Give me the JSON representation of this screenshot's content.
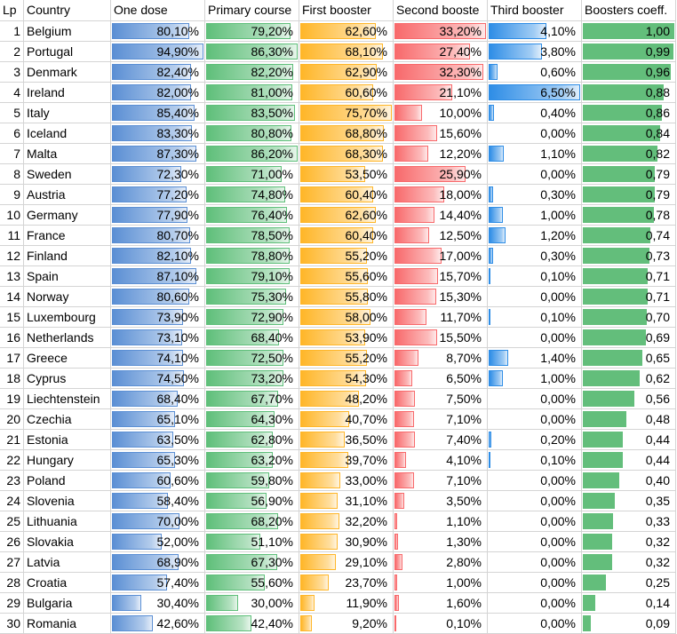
{
  "chart_data": {
    "type": "table",
    "columns": [
      "Lp",
      "Country",
      "One dose",
      "Primary course",
      "First booster",
      "Second booste",
      "Third booster",
      "Boosters coeff."
    ],
    "rows": [
      [
        "1",
        "Belgium",
        "80,10%",
        "79,20%",
        "62,60%",
        "33,20%",
        "4,10%",
        "1,00"
      ],
      [
        "2",
        "Portugal",
        "94,90%",
        "86,30%",
        "68,10%",
        "27,40%",
        "3,80%",
        "0,99"
      ],
      [
        "3",
        "Denmark",
        "82,40%",
        "82,20%",
        "62,90%",
        "32,30%",
        "0,60%",
        "0,96"
      ],
      [
        "4",
        "Ireland",
        "82,00%",
        "81,00%",
        "60,60%",
        "21,10%",
        "6,50%",
        "0,88"
      ],
      [
        "5",
        "Italy",
        "85,40%",
        "83,50%",
        "75,70%",
        "10,00%",
        "0,40%",
        "0,86"
      ],
      [
        "6",
        "Iceland",
        "83,30%",
        "80,80%",
        "68,80%",
        "15,60%",
        "0,00%",
        "0,84"
      ],
      [
        "7",
        "Malta",
        "87,30%",
        "86,20%",
        "68,30%",
        "12,20%",
        "1,10%",
        "0,82"
      ],
      [
        "8",
        "Sweden",
        "72,30%",
        "71,00%",
        "53,50%",
        "25,90%",
        "0,00%",
        "0,79"
      ],
      [
        "9",
        "Austria",
        "77,20%",
        "74,80%",
        "60,40%",
        "18,00%",
        "0,30%",
        "0,79"
      ],
      [
        "10",
        "Germany",
        "77,90%",
        "76,40%",
        "62,60%",
        "14,40%",
        "1,00%",
        "0,78"
      ],
      [
        "11",
        "France",
        "80,70%",
        "78,50%",
        "60,40%",
        "12,50%",
        "1,20%",
        "0,74"
      ],
      [
        "12",
        "Finland",
        "82,10%",
        "78,80%",
        "55,20%",
        "17,00%",
        "0,30%",
        "0,73"
      ],
      [
        "13",
        "Spain",
        "87,10%",
        "79,10%",
        "55,60%",
        "15,70%",
        "0,10%",
        "0,71"
      ],
      [
        "14",
        "Norway",
        "80,60%",
        "75,30%",
        "55,80%",
        "15,30%",
        "0,00%",
        "0,71"
      ],
      [
        "15",
        "Luxembourg",
        "73,90%",
        "72,90%",
        "58,00%",
        "11,70%",
        "0,10%",
        "0,70"
      ],
      [
        "16",
        "Netherlands",
        "73,10%",
        "68,40%",
        "53,90%",
        "15,50%",
        "0,00%",
        "0,69"
      ],
      [
        "17",
        "Greece",
        "74,10%",
        "72,50%",
        "55,20%",
        "8,70%",
        "1,40%",
        "0,65"
      ],
      [
        "18",
        "Cyprus",
        "74,50%",
        "73,20%",
        "54,30%",
        "6,50%",
        "1,00%",
        "0,62"
      ],
      [
        "19",
        "Liechtenstein",
        "68,40%",
        "67,70%",
        "48,20%",
        "7,50%",
        "0,00%",
        "0,56"
      ],
      [
        "20",
        "Czechia",
        "65,10%",
        "64,30%",
        "40,70%",
        "7,10%",
        "0,00%",
        "0,48"
      ],
      [
        "21",
        "Estonia",
        "63,50%",
        "62,80%",
        "36,50%",
        "7,40%",
        "0,20%",
        "0,44"
      ],
      [
        "22",
        "Hungary",
        "65,30%",
        "63,20%",
        "39,70%",
        "4,10%",
        "0,10%",
        "0,44"
      ],
      [
        "23",
        "Poland",
        "60,60%",
        "59,80%",
        "33,00%",
        "7,10%",
        "0,00%",
        "0,40"
      ],
      [
        "24",
        "Slovenia",
        "58,40%",
        "56,90%",
        "31,10%",
        "3,50%",
        "0,00%",
        "0,35"
      ],
      [
        "25",
        "Lithuania",
        "70,00%",
        "68,20%",
        "32,20%",
        "1,10%",
        "0,00%",
        "0,33"
      ],
      [
        "26",
        "Slovakia",
        "52,00%",
        "51,10%",
        "30,90%",
        "1,30%",
        "0,00%",
        "0,32"
      ],
      [
        "27",
        "Latvia",
        "68,90%",
        "67,30%",
        "29,10%",
        "2,80%",
        "0,00%",
        "0,32"
      ],
      [
        "28",
        "Croatia",
        "57,40%",
        "55,60%",
        "23,70%",
        "1,00%",
        "0,00%",
        "0,25"
      ],
      [
        "29",
        "Bulgaria",
        "30,40%",
        "30,00%",
        "11,90%",
        "1,60%",
        "0,00%",
        "0,14"
      ],
      [
        "30",
        "Romania",
        "42,60%",
        "42,40%",
        "9,20%",
        "0,10%",
        "0,00%",
        "0,09"
      ]
    ],
    "bar_colors": {
      "One dose": "#5b8fd4",
      "Primary course": "#5fbf7a",
      "First booster": "#ffb628",
      "Second booste": "#f8696b",
      "Third booster": "#2e8de6",
      "Boosters coeff.": "#63be7b"
    },
    "gridline_color": "#d4d4d4"
  }
}
